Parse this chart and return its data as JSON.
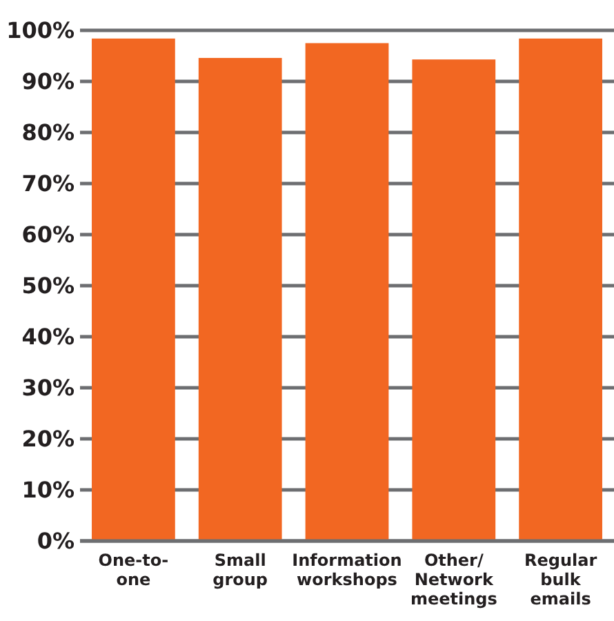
{
  "chart_data": {
    "type": "bar",
    "categories": [
      "One-to-\none",
      "Small\ngroup",
      "Information\nworkshops",
      "Other/\nNetwork\nmeetings",
      "Regular\nbulk\nemails"
    ],
    "values": [
      98.4,
      94.6,
      97.5,
      94.3,
      98.4
    ],
    "color": "#f26722",
    "ylim": [
      0,
      100
    ],
    "yticks": [
      {
        "value": 0,
        "label": "0%"
      },
      {
        "value": 10,
        "label": "10%"
      },
      {
        "value": 20,
        "label": "20%"
      },
      {
        "value": 30,
        "label": "30%"
      },
      {
        "value": 40,
        "label": "40%"
      },
      {
        "value": 50,
        "label": "50%"
      },
      {
        "value": 60,
        "label": "60%"
      },
      {
        "value": 70,
        "label": "70%"
      },
      {
        "value": 80,
        "label": "80%"
      },
      {
        "value": 90,
        "label": "90%"
      },
      {
        "value": 100,
        "label": "100%"
      }
    ],
    "grid": "y"
  }
}
